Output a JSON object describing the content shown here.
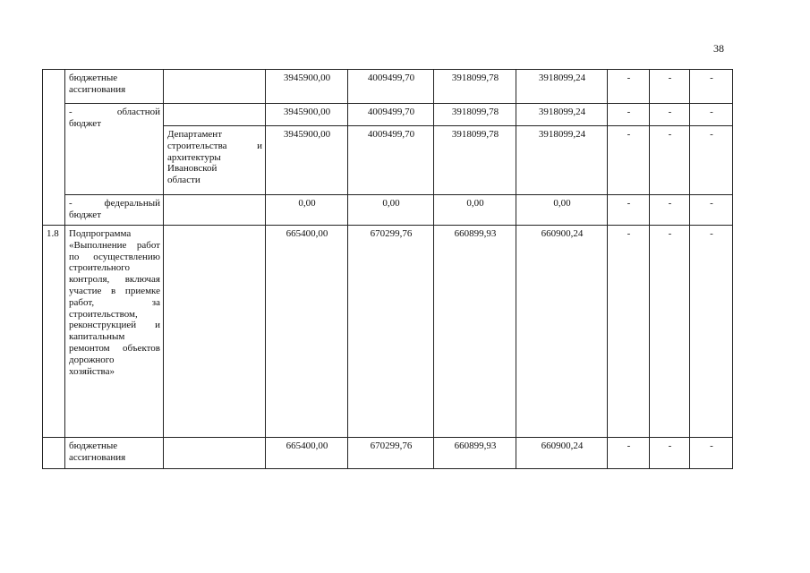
{
  "page_number": "38",
  "rows": [
    {
      "name": "бюджетные ассигнования",
      "executor": "",
      "values": [
        "3945900,00",
        "4009499,70",
        "3918099,78",
        "3918099,24",
        "-",
        "-",
        "-"
      ]
    },
    {
      "name_dash": "-",
      "name_word": "областной",
      "name_rest": "бюджет",
      "executor": "",
      "values": [
        "3945900,00",
        "4009499,70",
        "3918099,78",
        "3918099,24",
        "-",
        "-",
        "-"
      ]
    },
    {
      "executor_line1_a": "строительства",
      "executor_line1_b": "и",
      "executor_pre": "Департамент",
      "executor_post": "архитектуры Ивановской области",
      "values": [
        "3945900,00",
        "4009499,70",
        "3918099,78",
        "3918099,24",
        "-",
        "-",
        "-"
      ]
    },
    {
      "name_dash": "-",
      "name_word": "федеральный",
      "name_rest": "бюджет",
      "executor": "",
      "values": [
        "0,00",
        "0,00",
        "0,00",
        "0,00",
        "-",
        "-",
        "-"
      ]
    },
    {
      "number": "1.8",
      "name": "Подпрограмма «Выполнение работ по осуществлению строительного контроля, включая участие в приемке работ, за строительством, реконструкцией и капитальным ремонтом объектов дорожного хозяйства»",
      "executor": "",
      "values": [
        "665400,00",
        "670299,76",
        "660899,93",
        "660900,24",
        "-",
        "-",
        "-"
      ]
    },
    {
      "name": "бюджетные ассигнования",
      "executor": "",
      "values": [
        "665400,00",
        "670299,76",
        "660899,93",
        "660900,24",
        "-",
        "-",
        "-"
      ]
    }
  ]
}
